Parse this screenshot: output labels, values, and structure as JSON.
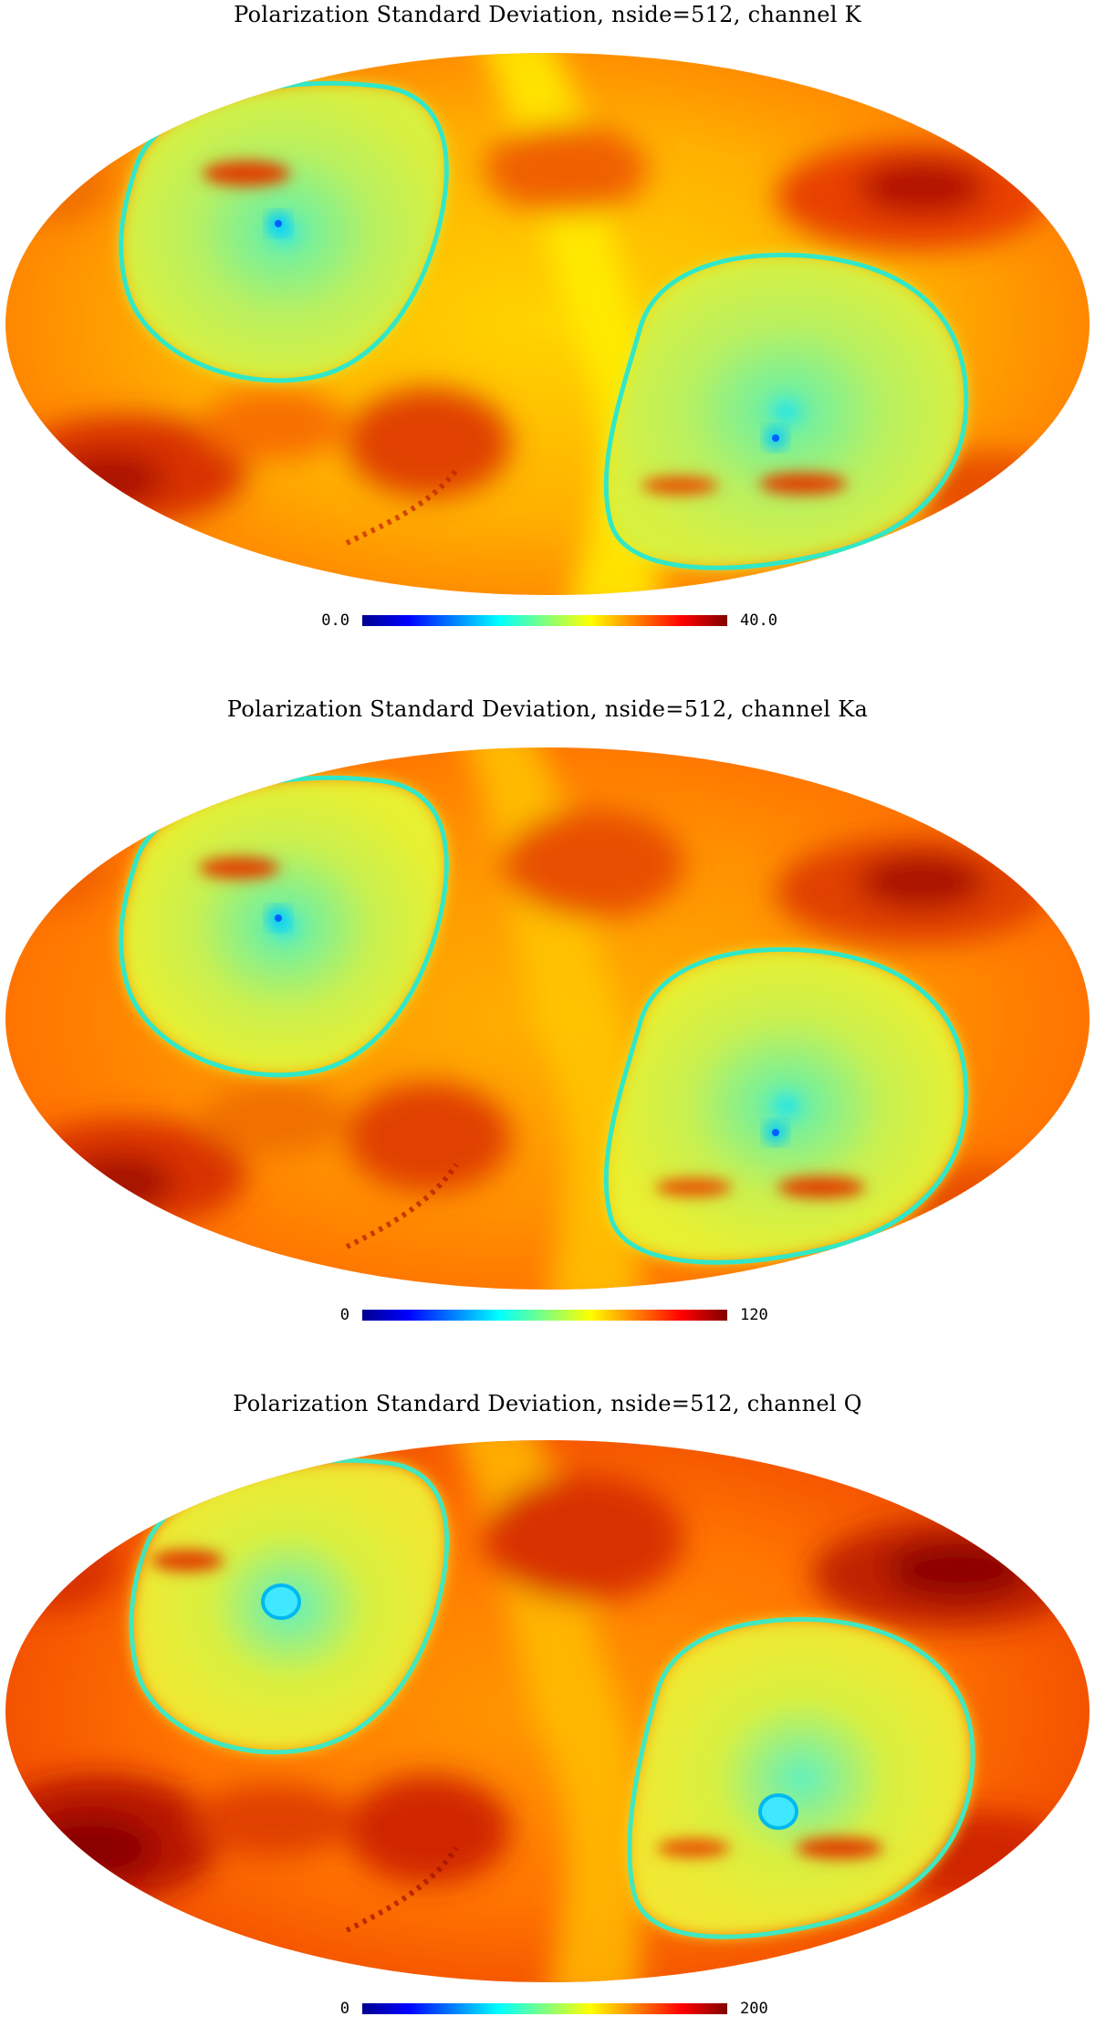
{
  "maps": [
    {
      "title": "Polarization Standard Deviation, nside=512, channel K",
      "cb_min": "0.0",
      "cb_max": "40.0"
    },
    {
      "title": "Polarization Standard Deviation, nside=512, channel Ka",
      "cb_min": "0",
      "cb_max": "120"
    },
    {
      "title": "Polarization Standard Deviation, nside=512, channel Q",
      "cb_min": "0",
      "cb_max": "200"
    }
  ],
  "colormap": [
    "#00008f",
    "#0000ff",
    "#0080ff",
    "#00ffff",
    "#80ff80",
    "#ffff00",
    "#ff8000",
    "#ff0000",
    "#800000"
  ]
}
